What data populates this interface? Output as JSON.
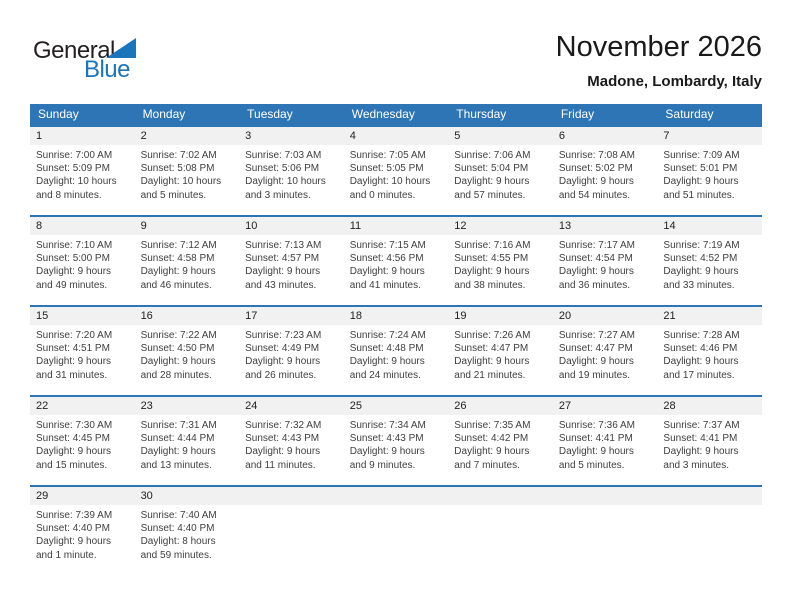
{
  "logo": {
    "part1": "General",
    "part2": "Blue"
  },
  "header": {
    "title": "November 2026",
    "subtitle": "Madone, Lombardy, Italy"
  },
  "colors": {
    "header_blue": "#2E75B6",
    "week_separator_blue": "#2E75B6",
    "day_band_gray": "#F1F1F1",
    "logo_blue": "#1B75BC",
    "detail_text": "#3F3F3F"
  },
  "weekdays": [
    "Sunday",
    "Monday",
    "Tuesday",
    "Wednesday",
    "Thursday",
    "Friday",
    "Saturday"
  ],
  "weeks": [
    [
      {
        "day": "1",
        "lines": [
          "Sunrise: 7:00 AM",
          "Sunset: 5:09 PM",
          "Daylight: 10 hours",
          "and 8 minutes."
        ]
      },
      {
        "day": "2",
        "lines": [
          "Sunrise: 7:02 AM",
          "Sunset: 5:08 PM",
          "Daylight: 10 hours",
          "and 5 minutes."
        ]
      },
      {
        "day": "3",
        "lines": [
          "Sunrise: 7:03 AM",
          "Sunset: 5:06 PM",
          "Daylight: 10 hours",
          "and 3 minutes."
        ]
      },
      {
        "day": "4",
        "lines": [
          "Sunrise: 7:05 AM",
          "Sunset: 5:05 PM",
          "Daylight: 10 hours",
          "and 0 minutes."
        ]
      },
      {
        "day": "5",
        "lines": [
          "Sunrise: 7:06 AM",
          "Sunset: 5:04 PM",
          "Daylight: 9 hours",
          "and 57 minutes."
        ]
      },
      {
        "day": "6",
        "lines": [
          "Sunrise: 7:08 AM",
          "Sunset: 5:02 PM",
          "Daylight: 9 hours",
          "and 54 minutes."
        ]
      },
      {
        "day": "7",
        "lines": [
          "Sunrise: 7:09 AM",
          "Sunset: 5:01 PM",
          "Daylight: 9 hours",
          "and 51 minutes."
        ]
      }
    ],
    [
      {
        "day": "8",
        "lines": [
          "Sunrise: 7:10 AM",
          "Sunset: 5:00 PM",
          "Daylight: 9 hours",
          "and 49 minutes."
        ]
      },
      {
        "day": "9",
        "lines": [
          "Sunrise: 7:12 AM",
          "Sunset: 4:58 PM",
          "Daylight: 9 hours",
          "and 46 minutes."
        ]
      },
      {
        "day": "10",
        "lines": [
          "Sunrise: 7:13 AM",
          "Sunset: 4:57 PM",
          "Daylight: 9 hours",
          "and 43 minutes."
        ]
      },
      {
        "day": "11",
        "lines": [
          "Sunrise: 7:15 AM",
          "Sunset: 4:56 PM",
          "Daylight: 9 hours",
          "and 41 minutes."
        ]
      },
      {
        "day": "12",
        "lines": [
          "Sunrise: 7:16 AM",
          "Sunset: 4:55 PM",
          "Daylight: 9 hours",
          "and 38 minutes."
        ]
      },
      {
        "day": "13",
        "lines": [
          "Sunrise: 7:17 AM",
          "Sunset: 4:54 PM",
          "Daylight: 9 hours",
          "and 36 minutes."
        ]
      },
      {
        "day": "14",
        "lines": [
          "Sunrise: 7:19 AM",
          "Sunset: 4:52 PM",
          "Daylight: 9 hours",
          "and 33 minutes."
        ]
      }
    ],
    [
      {
        "day": "15",
        "lines": [
          "Sunrise: 7:20 AM",
          "Sunset: 4:51 PM",
          "Daylight: 9 hours",
          "and 31 minutes."
        ]
      },
      {
        "day": "16",
        "lines": [
          "Sunrise: 7:22 AM",
          "Sunset: 4:50 PM",
          "Daylight: 9 hours",
          "and 28 minutes."
        ]
      },
      {
        "day": "17",
        "lines": [
          "Sunrise: 7:23 AM",
          "Sunset: 4:49 PM",
          "Daylight: 9 hours",
          "and 26 minutes."
        ]
      },
      {
        "day": "18",
        "lines": [
          "Sunrise: 7:24 AM",
          "Sunset: 4:48 PM",
          "Daylight: 9 hours",
          "and 24 minutes."
        ]
      },
      {
        "day": "19",
        "lines": [
          "Sunrise: 7:26 AM",
          "Sunset: 4:47 PM",
          "Daylight: 9 hours",
          "and 21 minutes."
        ]
      },
      {
        "day": "20",
        "lines": [
          "Sunrise: 7:27 AM",
          "Sunset: 4:47 PM",
          "Daylight: 9 hours",
          "and 19 minutes."
        ]
      },
      {
        "day": "21",
        "lines": [
          "Sunrise: 7:28 AM",
          "Sunset: 4:46 PM",
          "Daylight: 9 hours",
          "and 17 minutes."
        ]
      }
    ],
    [
      {
        "day": "22",
        "lines": [
          "Sunrise: 7:30 AM",
          "Sunset: 4:45 PM",
          "Daylight: 9 hours",
          "and 15 minutes."
        ]
      },
      {
        "day": "23",
        "lines": [
          "Sunrise: 7:31 AM",
          "Sunset: 4:44 PM",
          "Daylight: 9 hours",
          "and 13 minutes."
        ]
      },
      {
        "day": "24",
        "lines": [
          "Sunrise: 7:32 AM",
          "Sunset: 4:43 PM",
          "Daylight: 9 hours",
          "and 11 minutes."
        ]
      },
      {
        "day": "25",
        "lines": [
          "Sunrise: 7:34 AM",
          "Sunset: 4:43 PM",
          "Daylight: 9 hours",
          "and 9 minutes."
        ]
      },
      {
        "day": "26",
        "lines": [
          "Sunrise: 7:35 AM",
          "Sunset: 4:42 PM",
          "Daylight: 9 hours",
          "and 7 minutes."
        ]
      },
      {
        "day": "27",
        "lines": [
          "Sunrise: 7:36 AM",
          "Sunset: 4:41 PM",
          "Daylight: 9 hours",
          "and 5 minutes."
        ]
      },
      {
        "day": "28",
        "lines": [
          "Sunrise: 7:37 AM",
          "Sunset: 4:41 PM",
          "Daylight: 9 hours",
          "and 3 minutes."
        ]
      }
    ],
    [
      {
        "day": "29",
        "lines": [
          "Sunrise: 7:39 AM",
          "Sunset: 4:40 PM",
          "Daylight: 9 hours",
          "and 1 minute."
        ]
      },
      {
        "day": "30",
        "lines": [
          "Sunrise: 7:40 AM",
          "Sunset: 4:40 PM",
          "Daylight: 8 hours",
          "and 59 minutes."
        ]
      },
      null,
      null,
      null,
      null,
      null
    ]
  ]
}
